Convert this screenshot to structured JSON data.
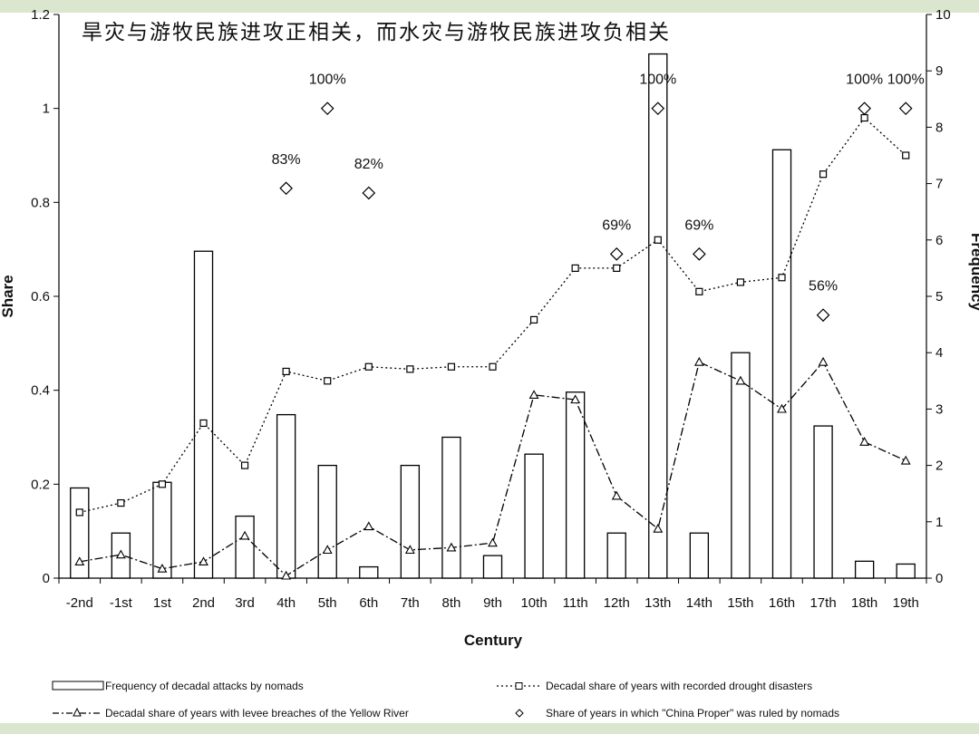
{
  "slide_title": "旱灾与游牧民族进攻正相关，而水灾与游牧民族进攻负相关",
  "chart_data": {
    "type": "bar",
    "xlabel": "Century",
    "ylabel_left": "Share",
    "ylabel_right": "Frequency",
    "ylim_left": [
      0,
      1.2
    ],
    "ylim_right": [
      0,
      10
    ],
    "left_ticks": [
      "0",
      "0.2",
      "0.4",
      "0.6",
      "0.8",
      "1",
      "1.2"
    ],
    "right_ticks": [
      "0",
      "1",
      "2",
      "3",
      "4",
      "5",
      "6",
      "7",
      "8",
      "9",
      "10"
    ],
    "categories": [
      "-2nd",
      "-1st",
      "1st",
      "2nd",
      "3rd",
      "4th",
      "5th",
      "6th",
      "7th",
      "8th",
      "9th",
      "10th",
      "11th",
      "12th",
      "13th",
      "14th",
      "15th",
      "16th",
      "17th",
      "18th",
      "19th"
    ],
    "series": [
      {
        "name": "Frequency of decadal attacks by nomads",
        "axis": "right",
        "kind": "bar",
        "values": [
          1.6,
          0.8,
          1.7,
          5.8,
          1.1,
          2.9,
          2.0,
          0.2,
          2.0,
          2.5,
          0.4,
          2.2,
          3.3,
          0.8,
          9.3,
          0.8,
          4.0,
          7.6,
          2.7,
          0.3,
          0.25
        ]
      },
      {
        "name": "Decadal share of years with recorded drought disasters",
        "axis": "left",
        "kind": "line-dotted-square",
        "values": [
          0.14,
          0.16,
          0.2,
          0.33,
          0.24,
          0.44,
          0.42,
          0.45,
          0.445,
          0.45,
          0.45,
          0.55,
          0.66,
          0.66,
          0.72,
          0.61,
          0.63,
          0.64,
          0.86,
          0.98,
          0.9
        ]
      },
      {
        "name": "Decadal share of years with levee breaches of the Yellow River",
        "axis": "left",
        "kind": "line-dashdot-triangle",
        "values": [
          0.035,
          0.05,
          0.02,
          0.035,
          0.09,
          0.005,
          0.06,
          0.11,
          0.06,
          0.065,
          0.075,
          0.39,
          0.38,
          0.175,
          0.105,
          0.46,
          0.42,
          0.36,
          0.46,
          0.29,
          0.25
        ]
      },
      {
        "name": "Share of years in which \"China Proper\" was ruled by nomads",
        "axis": "left",
        "kind": "diamond",
        "points": [
          {
            "category": "4th",
            "value": 0.83,
            "label": "83%"
          },
          {
            "category": "5th",
            "value": 1.0,
            "label": "100%"
          },
          {
            "category": "6th",
            "value": 0.82,
            "label": "82%"
          },
          {
            "category": "12th",
            "value": 0.69,
            "label": "69%"
          },
          {
            "category": "13th",
            "value": 1.0,
            "label": "100%"
          },
          {
            "category": "14th",
            "value": 0.69,
            "label": "69%"
          },
          {
            "category": "17th",
            "value": 0.56,
            "label": "56%"
          },
          {
            "category": "18th",
            "value": 1.0,
            "label": "100%"
          },
          {
            "category": "19th",
            "value": 1.0,
            "label": "100%"
          }
        ]
      }
    ],
    "legend": [
      {
        "label": "Frequency of decadal attacks by nomads",
        "marker": "bar"
      },
      {
        "label": "Decadal share of years with recorded drought disasters",
        "marker": "square-dotted"
      },
      {
        "label": "Decadal share of years with levee breaches of the Yellow River",
        "marker": "triangle-dashdot"
      },
      {
        "label": "Share of years in which \"China Proper\" was ruled by nomads",
        "marker": "diamond"
      }
    ],
    "legend_position": "bottom",
    "grid": false
  }
}
